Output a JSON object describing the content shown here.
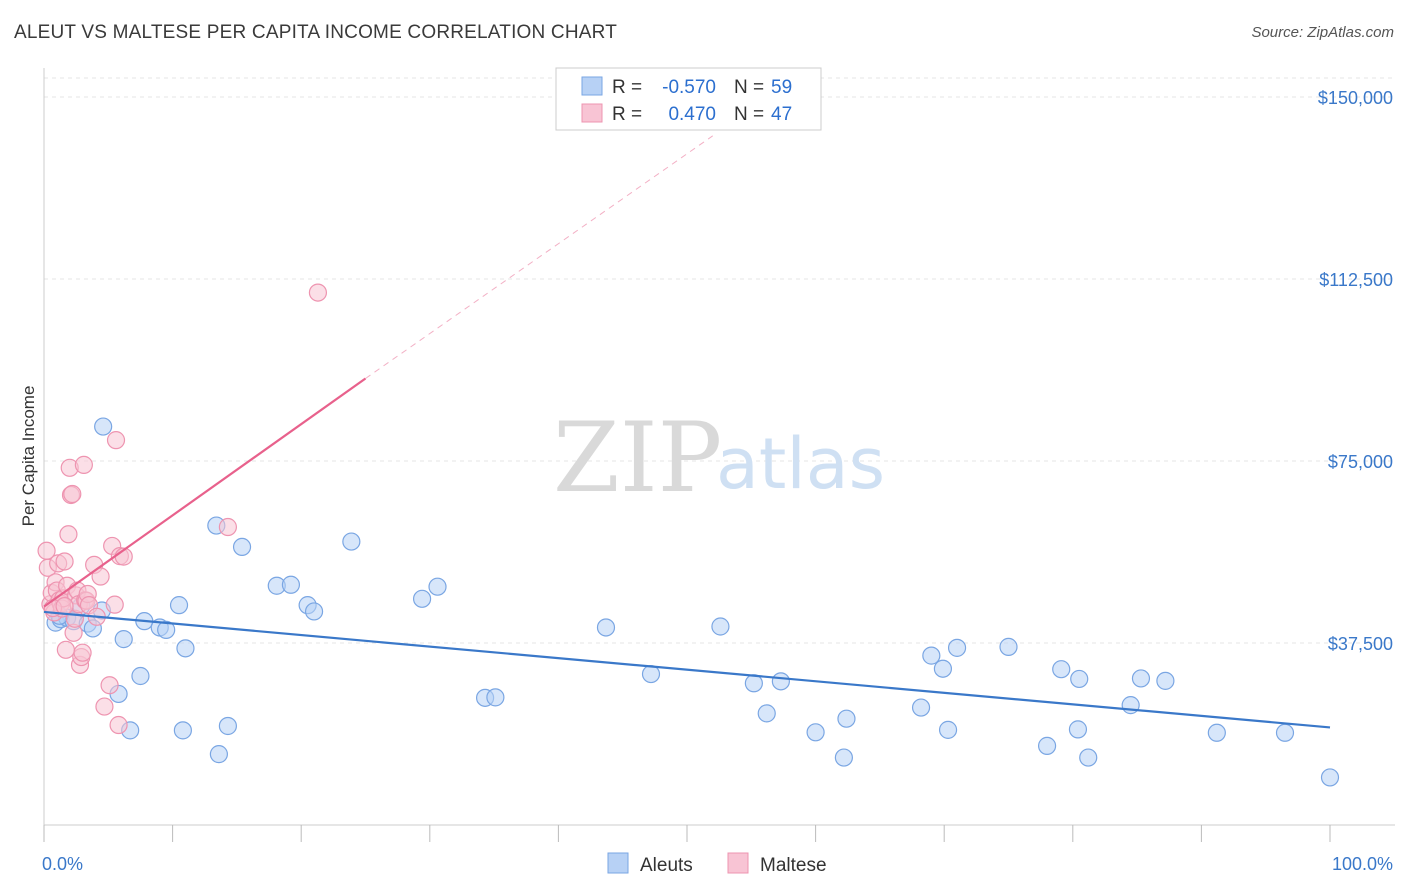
{
  "title": "ALEUT VS MALTESE PER CAPITA INCOME CORRELATION CHART",
  "source": "Source: ZipAtlas.com",
  "watermark": {
    "part1": "ZIP",
    "part2": "atlas"
  },
  "stats": {
    "r_label": "R =",
    "n_label": "N =",
    "rows": [
      {
        "r": "-0.570",
        "n": "59",
        "fill": "#b7d1f5",
        "stroke": "#7aa6e3"
      },
      {
        "r": "0.470",
        "n": "47",
        "fill": "#f8c4d4",
        "stroke": "#ee94b0"
      }
    ]
  },
  "legend": [
    {
      "label": "Aleuts",
      "fill": "#b7d1f5",
      "stroke": "#7aa6e3"
    },
    {
      "label": "Maltese",
      "fill": "#f8c4d4",
      "stroke": "#ee94b0"
    }
  ],
  "chart_data": {
    "type": "scatter",
    "title": "ALEUT VS MALTESE PER CAPITA INCOME CORRELATION CHART",
    "xlabel": "",
    "ylabel": "Per Capita Income",
    "xlim": [
      0,
      100
    ],
    "ylim": [
      0,
      153500
    ],
    "x_tick_labels": [
      {
        "value": 0,
        "label": "0.0%"
      },
      {
        "value": 100,
        "label": "100.0%"
      }
    ],
    "y_ticks": [
      {
        "value": 37500,
        "label": "$37,500"
      },
      {
        "value": 75000,
        "label": "$75,000"
      },
      {
        "value": 112500,
        "label": "$112,500"
      },
      {
        "value": 150000,
        "label": "$150,000"
      }
    ],
    "grid": true,
    "legend_position": "bottom-center",
    "series": [
      {
        "name": "Aleuts",
        "color": "#3a78c9",
        "fill": "#b7d1f5",
        "stroke": "#7aa6e3",
        "trend": {
          "x1": 0,
          "y1": 43900,
          "x2": 100,
          "y2": 20100
        },
        "points": [
          [
            0.9,
            41700
          ],
          [
            1.3,
            42400
          ],
          [
            1.8,
            42700
          ],
          [
            2.3,
            42000
          ],
          [
            2.9,
            45100
          ],
          [
            3.4,
            41500
          ],
          [
            3.8,
            40500
          ],
          [
            4.5,
            44200
          ],
          [
            4.6,
            82100
          ],
          [
            5.8,
            27000
          ],
          [
            6.2,
            38300
          ],
          [
            6.7,
            19500
          ],
          [
            7.5,
            30700
          ],
          [
            7.8,
            42000
          ],
          [
            9.0,
            40700
          ],
          [
            9.5,
            40200
          ],
          [
            10.5,
            45300
          ],
          [
            10.8,
            19500
          ],
          [
            11.0,
            36400
          ],
          [
            13.6,
            14600
          ],
          [
            13.4,
            61700
          ],
          [
            14.3,
            20400
          ],
          [
            15.4,
            57300
          ],
          [
            18.1,
            49300
          ],
          [
            19.2,
            49500
          ],
          [
            20.5,
            45300
          ],
          [
            21.0,
            44000
          ],
          [
            23.9,
            58400
          ],
          [
            29.4,
            46600
          ],
          [
            30.6,
            49100
          ],
          [
            34.3,
            26200
          ],
          [
            35.1,
            26300
          ],
          [
            43.7,
            40700
          ],
          [
            47.2,
            31100
          ],
          [
            52.6,
            40900
          ],
          [
            55.2,
            29200
          ],
          [
            56.2,
            23000
          ],
          [
            57.3,
            29600
          ],
          [
            60.0,
            19100
          ],
          [
            62.2,
            13900
          ],
          [
            62.4,
            21900
          ],
          [
            68.2,
            24200
          ],
          [
            69.0,
            34900
          ],
          [
            69.9,
            32200
          ],
          [
            70.3,
            19600
          ],
          [
            71.0,
            36500
          ],
          [
            75.0,
            36700
          ],
          [
            78.0,
            16300
          ],
          [
            79.1,
            32100
          ],
          [
            80.4,
            19700
          ],
          [
            80.5,
            30100
          ],
          [
            81.2,
            13900
          ],
          [
            84.5,
            24700
          ],
          [
            85.3,
            30200
          ],
          [
            87.2,
            29700
          ],
          [
            91.2,
            19000
          ],
          [
            96.5,
            19000
          ],
          [
            100,
            9800
          ],
          [
            1.2,
            43100
          ]
        ]
      },
      {
        "name": "Maltese",
        "color": "#e8618c",
        "fill": "#f8c4d4",
        "stroke": "#ee94b0",
        "trend": {
          "x1": 0,
          "y1": 45000,
          "x2": 25.0,
          "y2": 92000
        },
        "trend_dashed": {
          "x1": 25.0,
          "y1": 92000,
          "x2": 52.0,
          "y2": 142000
        },
        "points": [
          [
            0.2,
            56500
          ],
          [
            0.3,
            53000
          ],
          [
            0.5,
            45500
          ],
          [
            0.6,
            47800
          ],
          [
            0.8,
            43800
          ],
          [
            0.9,
            50000
          ],
          [
            1.0,
            48300
          ],
          [
            1.1,
            53900
          ],
          [
            1.2,
            46300
          ],
          [
            1.3,
            45600
          ],
          [
            1.4,
            44600
          ],
          [
            1.5,
            46700
          ],
          [
            1.6,
            54300
          ],
          [
            1.7,
            36100
          ],
          [
            1.8,
            49300
          ],
          [
            1.9,
            59900
          ],
          [
            2.0,
            73600
          ],
          [
            2.1,
            68000
          ],
          [
            2.2,
            68200
          ],
          [
            2.3,
            39600
          ],
          [
            2.4,
            42500
          ],
          [
            2.5,
            47300
          ],
          [
            2.6,
            48300
          ],
          [
            2.7,
            45500
          ],
          [
            2.8,
            33000
          ],
          [
            2.9,
            34600
          ],
          [
            3.0,
            35500
          ],
          [
            3.1,
            74200
          ],
          [
            3.2,
            46300
          ],
          [
            3.3,
            46200
          ],
          [
            3.4,
            47600
          ],
          [
            3.5,
            45300
          ],
          [
            3.9,
            53600
          ],
          [
            4.1,
            42900
          ],
          [
            4.4,
            51200
          ],
          [
            4.7,
            24400
          ],
          [
            5.1,
            28800
          ],
          [
            5.3,
            57500
          ],
          [
            5.5,
            45400
          ],
          [
            5.6,
            79300
          ],
          [
            5.8,
            20600
          ],
          [
            5.9,
            55400
          ],
          [
            6.2,
            55300
          ],
          [
            14.3,
            61400
          ],
          [
            21.3,
            109700
          ],
          [
            0.7,
            44700
          ],
          [
            1.6,
            45100
          ]
        ]
      }
    ]
  }
}
